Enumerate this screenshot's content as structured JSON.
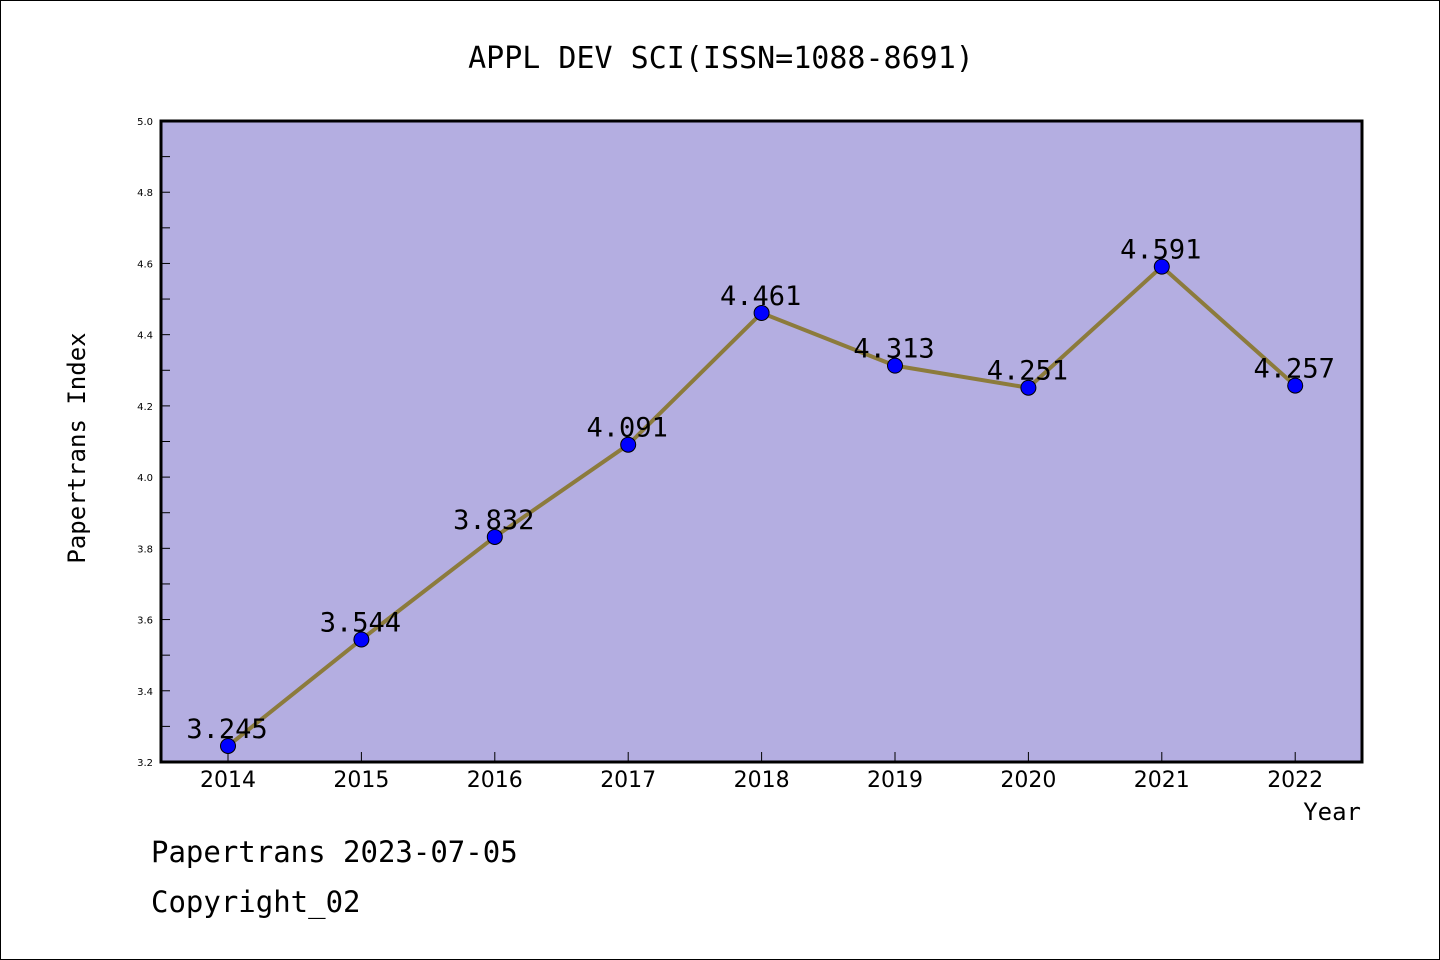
{
  "footer": {
    "line1": "Papertrans 2023-07-05",
    "line2": "Copyright_02"
  },
  "chart_data": {
    "type": "line",
    "title": "APPL DEV SCI(ISSN=1088-8691)",
    "xlabel": "Year",
    "ylabel": "Papertrans Index",
    "x": [
      "2014",
      "2015",
      "2016",
      "2017",
      "2018",
      "2019",
      "2020",
      "2021",
      "2022"
    ],
    "series": [
      {
        "values": [
          3.245,
          3.544,
          3.832,
          4.091,
          4.461,
          4.313,
          4.251,
          4.591,
          4.257
        ],
        "labels": [
          "3.245",
          "3.544",
          "3.832",
          "4.091",
          "4.461",
          "4.313",
          "4.251",
          "4.591",
          "4.257"
        ],
        "line_color": "#8c7b3c",
        "marker_color": "#0000ff"
      }
    ],
    "ylim": [
      3.2,
      5.0
    ],
    "yticks": [
      "3.2",
      "3.4",
      "3.6",
      "3.8",
      "4.0",
      "4.2",
      "4.4",
      "4.6",
      "4.8",
      "5.0"
    ],
    "plot_background": "#b4aee1",
    "grid": false,
    "legend": "none"
  }
}
